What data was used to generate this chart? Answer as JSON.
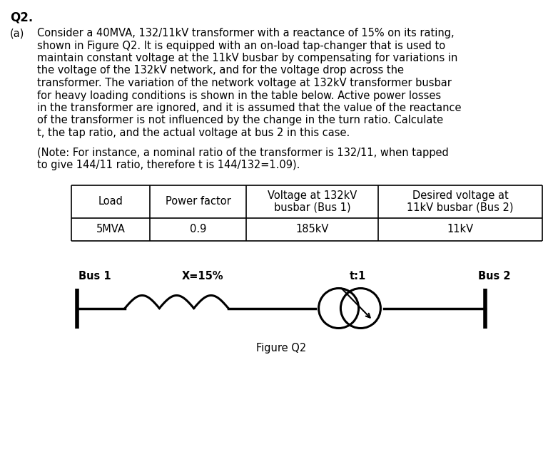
{
  "title": "Q2.",
  "bg_color": "#ffffff",
  "text_color": "#000000",
  "para_a_label": "(a)",
  "para_a_lines": [
    "Consider a 40MVA, 132/11kV transformer with a reactance of 15% on its rating,",
    "shown in Figure Q2. It is equipped with an on-load tap-changer that is used to",
    "maintain constant voltage at the 11kV busbar by compensating for variations in",
    "the voltage of the 132kV network, and for the voltage drop across the",
    "transformer. The variation of the network voltage at 132kV transformer busbar",
    "for heavy loading conditions is shown in the table below. Active power losses",
    "in the transformer are ignored, and it is assumed that the value of the reactance",
    "of the transformer is not influenced by the change in the turn ratio. Calculate",
    "t, the tap ratio, and the actual voltage at bus 2 in this case."
  ],
  "note_lines": [
    "(Note: For instance, a nominal ratio of the transformer is 132/11, when tapped",
    "to give 144/11 ratio, therefore t is 144/132=1.09)."
  ],
  "note_italic_word": "t",
  "table_col1_header": "Load",
  "table_col2_header": "Power factor",
  "table_col3_header_1": "Voltage at 132kV",
  "table_col3_header_2": "busbar (Bus 1)",
  "table_col4_header_1": "Desired voltage at",
  "table_col4_header_2": "11kV busbar (Bus 2)",
  "table_row1": [
    "5MVA",
    "0.9",
    "185kV",
    "11kV"
  ],
  "fig_bus1_label": "Bus 1",
  "fig_bus2_label": "Bus 2",
  "fig_x_label": "X=15%",
  "fig_t_label": "t:1",
  "fig_caption": "Figure Q2",
  "font_size_title": 12,
  "font_size_body": 10.5,
  "font_size_table": 10.5,
  "font_size_fig": 10.5
}
